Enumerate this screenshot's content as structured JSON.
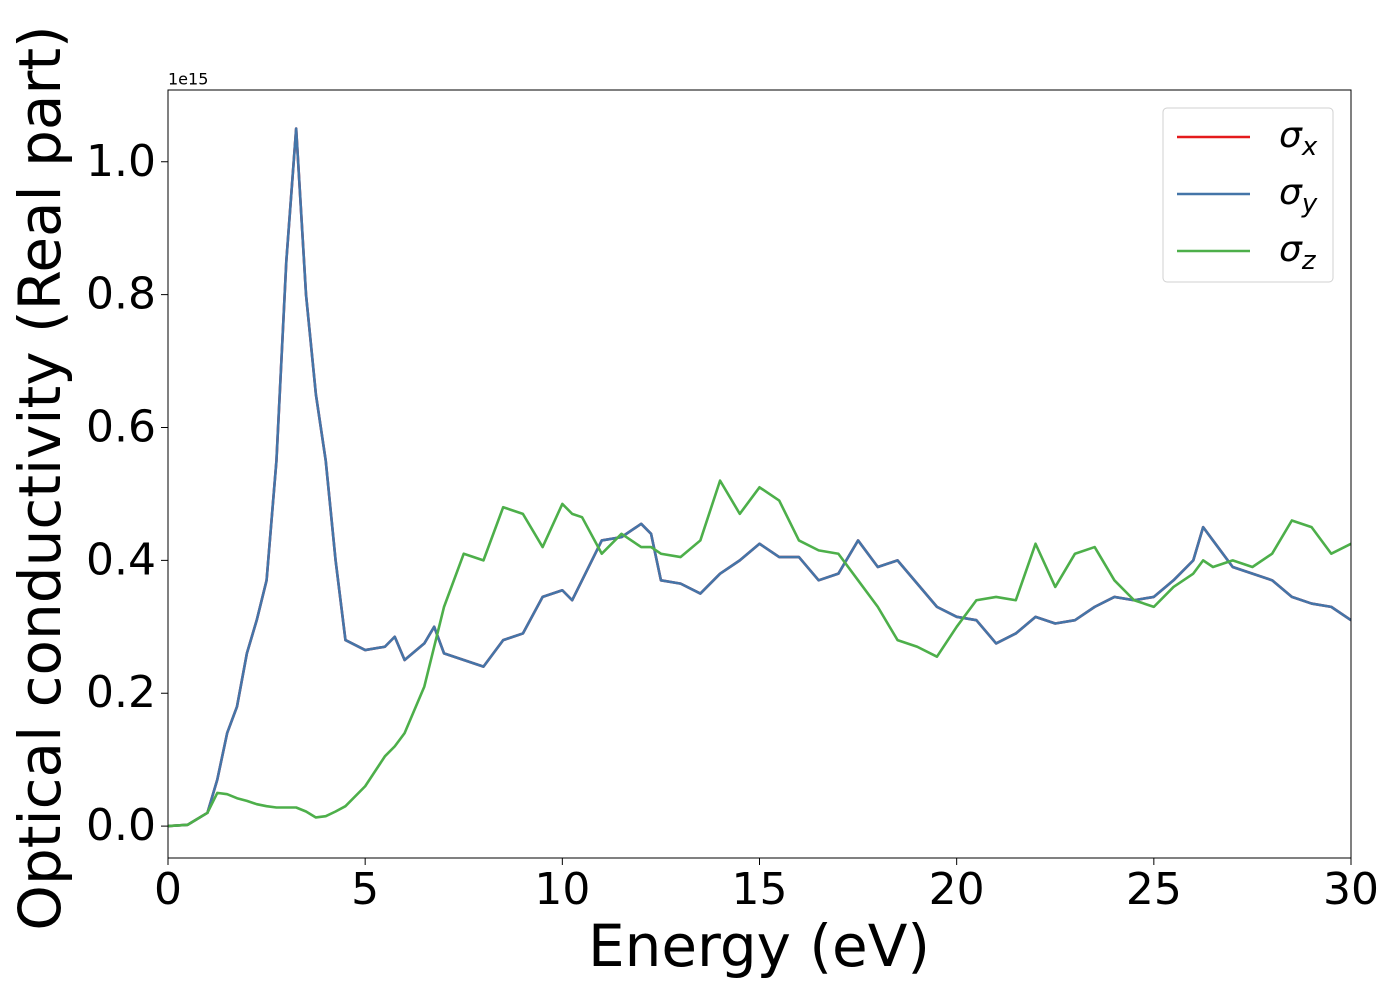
{
  "chart_data": {
    "type": "line",
    "xlabel": "Energy (eV)",
    "ylabel": "Optical conductivity (Real part)",
    "offset_label": "1e15",
    "x": [
      0,
      0.5,
      1.0,
      1.25,
      1.5,
      1.75,
      2.0,
      2.25,
      2.5,
      2.75,
      3.0,
      3.25,
      3.5,
      3.75,
      4.0,
      4.25,
      4.5,
      5.0,
      5.5,
      5.75,
      6.0,
      6.5,
      6.75,
      7.0,
      7.5,
      8.0,
      8.5,
      9.0,
      9.5,
      10.0,
      10.25,
      10.5,
      11.0,
      11.5,
      12.0,
      12.25,
      12.5,
      13.0,
      13.5,
      14.0,
      14.5,
      15.0,
      15.5,
      16.0,
      16.5,
      17.0,
      17.5,
      18.0,
      18.5,
      19.0,
      19.5,
      20.0,
      20.5,
      21.0,
      21.5,
      22.0,
      22.5,
      23.0,
      23.5,
      24.0,
      24.5,
      25.0,
      25.5,
      26.0,
      26.25,
      26.5,
      27.0,
      27.5,
      28.0,
      28.5,
      29.0,
      29.5,
      30.0
    ],
    "series": [
      {
        "name": "σx",
        "color": "#e41a1c",
        "values": [
          0.0,
          0.002,
          0.02,
          0.07,
          0.14,
          0.18,
          0.26,
          0.31,
          0.37,
          0.55,
          0.85,
          1.05,
          0.8,
          0.65,
          0.55,
          0.4,
          0.28,
          0.265,
          0.27,
          0.285,
          0.25,
          0.275,
          0.3,
          0.26,
          0.25,
          0.24,
          0.28,
          0.29,
          0.345,
          0.355,
          0.34,
          0.37,
          0.43,
          0.435,
          0.455,
          0.44,
          0.37,
          0.365,
          0.35,
          0.38,
          0.4,
          0.425,
          0.405,
          0.405,
          0.37,
          0.38,
          0.43,
          0.39,
          0.4,
          0.365,
          0.33,
          0.315,
          0.31,
          0.275,
          0.29,
          0.315,
          0.305,
          0.31,
          0.33,
          0.345,
          0.34,
          0.345,
          0.37,
          0.4,
          0.45,
          0.43,
          0.39,
          0.38,
          0.37,
          0.345,
          0.335,
          0.33,
          0.31
        ]
      },
      {
        "name": "σy",
        "color": "#4475a8",
        "values": [
          0.0,
          0.002,
          0.02,
          0.07,
          0.14,
          0.18,
          0.26,
          0.31,
          0.37,
          0.55,
          0.85,
          1.05,
          0.8,
          0.65,
          0.55,
          0.4,
          0.28,
          0.265,
          0.27,
          0.285,
          0.25,
          0.275,
          0.3,
          0.26,
          0.25,
          0.24,
          0.28,
          0.29,
          0.345,
          0.355,
          0.34,
          0.37,
          0.43,
          0.435,
          0.455,
          0.44,
          0.37,
          0.365,
          0.35,
          0.38,
          0.4,
          0.425,
          0.405,
          0.405,
          0.37,
          0.38,
          0.43,
          0.39,
          0.4,
          0.365,
          0.33,
          0.315,
          0.31,
          0.275,
          0.29,
          0.315,
          0.305,
          0.31,
          0.33,
          0.345,
          0.34,
          0.345,
          0.37,
          0.4,
          0.45,
          0.43,
          0.39,
          0.38,
          0.37,
          0.345,
          0.335,
          0.33,
          0.31
        ]
      },
      {
        "name": "σz",
        "color": "#4daf4a",
        "values": [
          0.0,
          0.002,
          0.02,
          0.05,
          0.048,
          0.042,
          0.038,
          0.033,
          0.03,
          0.028,
          0.028,
          0.028,
          0.022,
          0.013,
          0.015,
          0.022,
          0.03,
          0.06,
          0.105,
          0.12,
          0.14,
          0.21,
          0.27,
          0.33,
          0.41,
          0.4,
          0.48,
          0.47,
          0.42,
          0.485,
          0.47,
          0.465,
          0.41,
          0.44,
          0.42,
          0.42,
          0.41,
          0.405,
          0.43,
          0.52,
          0.47,
          0.51,
          0.49,
          0.43,
          0.415,
          0.41,
          0.37,
          0.33,
          0.28,
          0.27,
          0.255,
          0.3,
          0.34,
          0.345,
          0.34,
          0.425,
          0.36,
          0.41,
          0.42,
          0.37,
          0.34,
          0.33,
          0.36,
          0.38,
          0.4,
          0.39,
          0.4,
          0.39,
          0.41,
          0.46,
          0.45,
          0.41,
          0.425
        ]
      }
    ],
    "xlim": [
      0,
      30
    ],
    "xticks": [
      0,
      5,
      10,
      15,
      20,
      25,
      30
    ],
    "ylim": [
      -0.048,
      1.108
    ],
    "yticks": [
      {
        "value": 0,
        "label": "0.0"
      },
      0.2,
      0.4,
      0.6,
      0.8,
      {
        "value": 1,
        "label": "1.0"
      }
    ],
    "grid": false,
    "legend": "upper right"
  }
}
